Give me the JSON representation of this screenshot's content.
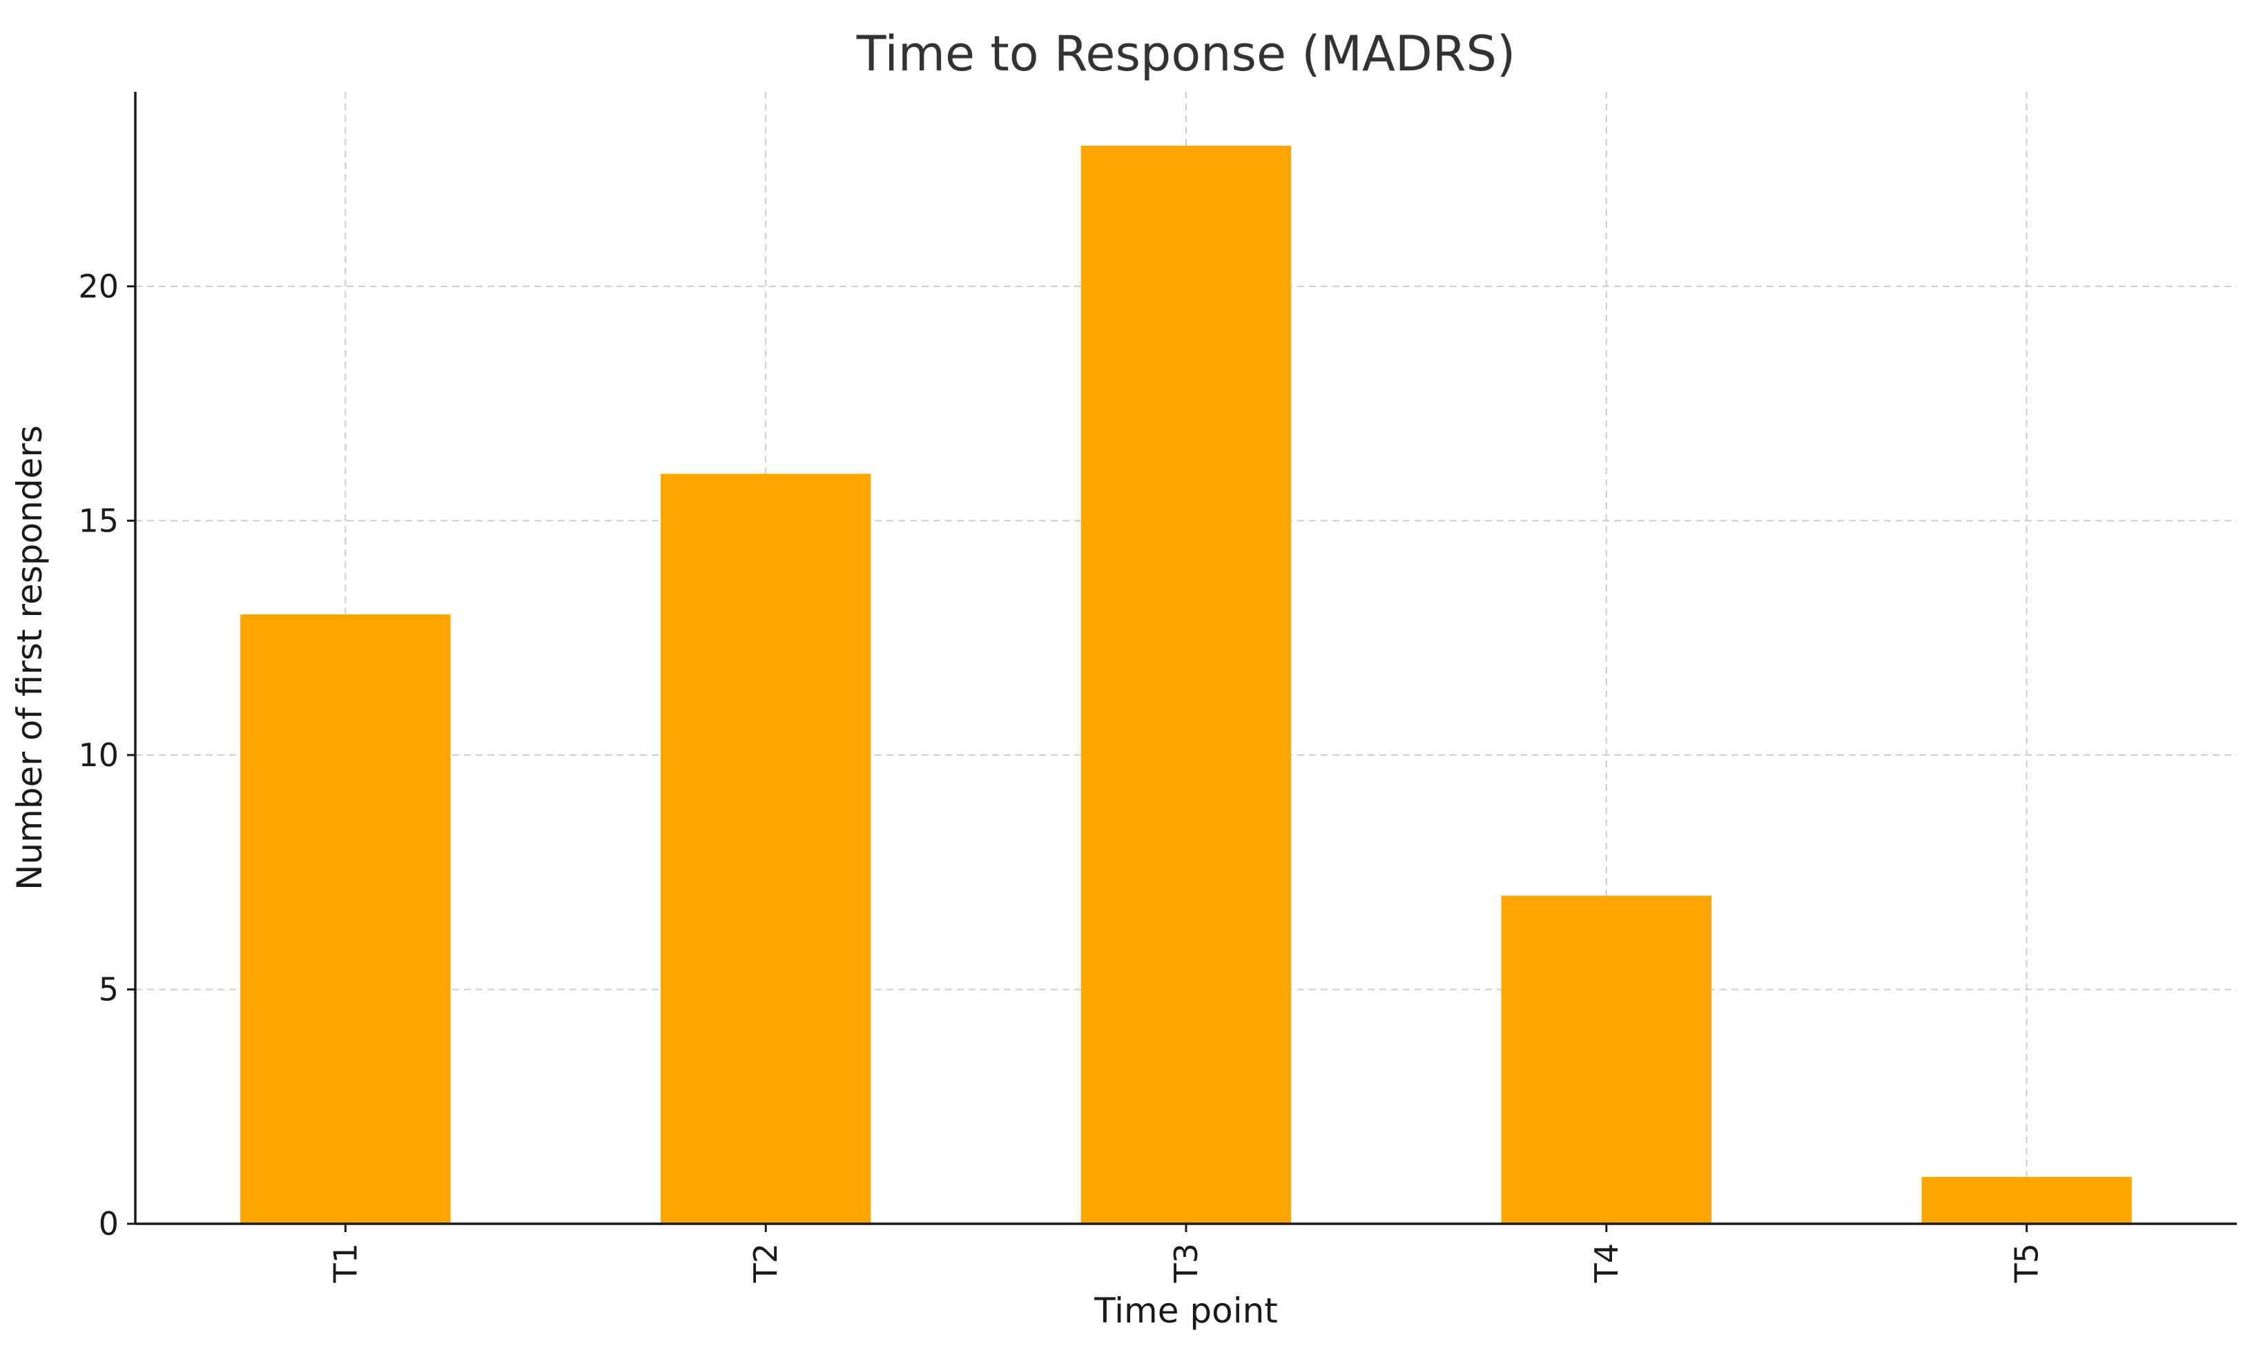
{
  "chart_data": {
    "type": "bar",
    "title": "Time to Response (MADRS)",
    "xlabel": "Time point",
    "ylabel": "Number of first responders",
    "categories": [
      "T1",
      "T2",
      "T3",
      "T4",
      "T5"
    ],
    "values": [
      13,
      16,
      23,
      7,
      1
    ],
    "ylim": [
      0,
      24.15
    ],
    "yticks": [
      0,
      5,
      10,
      15,
      20
    ],
    "x_tick_rotation_deg": -90,
    "grid": true,
    "bar_color": "#FFA500",
    "grid_color": "#CCCCCC",
    "axis_color": "#1A1A1A",
    "title_color": "#333333"
  }
}
